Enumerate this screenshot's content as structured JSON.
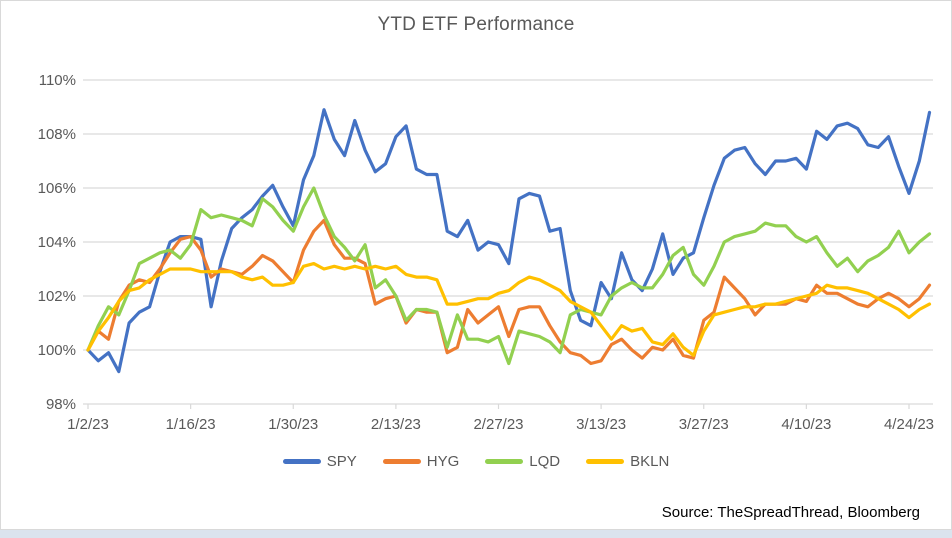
{
  "chart_data": {
    "type": "line",
    "title": "YTD ETF Performance",
    "source": "Source: TheSpreadThread, Bloomberg",
    "legend_position": "bottom-center",
    "grid": "horizontal-only",
    "colors": {
      "text": "#595959",
      "gridline": "#d9d9d9",
      "source_text": "#000000",
      "below_chart_strip": "#dbe3ee"
    },
    "y_axis": {
      "tick_labels": [
        "98%",
        "100%",
        "102%",
        "104%",
        "106%",
        "108%",
        "110%"
      ],
      "min": 98,
      "max": 110,
      "step": 2,
      "unit": "%"
    },
    "x_axis": {
      "tick_labels": [
        "1/2/23",
        "1/16/23",
        "1/30/23",
        "2/13/23",
        "2/27/23",
        "3/13/23",
        "3/27/23",
        "4/10/23",
        "4/24/23"
      ],
      "points_per_tick": 10,
      "granularity": "daily (weekdays)"
    },
    "series": [
      {
        "name": "SPY",
        "color": "#4472C4",
        "values": [
          100.0,
          99.6,
          99.9,
          99.2,
          101.0,
          101.4,
          101.6,
          102.9,
          104.0,
          104.2,
          104.2,
          104.1,
          101.6,
          103.3,
          104.5,
          104.9,
          105.2,
          105.7,
          106.1,
          105.3,
          104.6,
          106.3,
          107.2,
          108.9,
          107.8,
          107.2,
          108.5,
          107.4,
          106.6,
          106.9,
          107.9,
          108.3,
          106.7,
          106.5,
          106.5,
          104.4,
          104.2,
          104.8,
          103.7,
          104.0,
          103.9,
          103.2,
          105.6,
          105.8,
          105.7,
          104.4,
          104.5,
          102.2,
          101.1,
          100.9,
          102.5,
          101.9,
          103.6,
          102.6,
          102.2,
          103.0,
          104.3,
          102.8,
          103.4,
          103.6,
          104.9,
          106.1,
          107.1,
          107.4,
          107.5,
          106.9,
          106.5,
          107.0,
          107.0,
          107.1,
          106.7,
          108.1,
          107.8,
          108.3,
          108.4,
          108.2,
          107.6,
          107.5,
          107.9,
          106.8,
          105.8,
          107.0,
          108.8
        ]
      },
      {
        "name": "HYG",
        "color": "#ED7D31",
        "values": [
          100.0,
          100.7,
          100.4,
          101.8,
          102.4,
          102.6,
          102.5,
          103.0,
          103.6,
          104.1,
          104.2,
          103.7,
          102.7,
          103.0,
          102.9,
          102.8,
          103.1,
          103.5,
          103.3,
          102.9,
          102.5,
          103.7,
          104.4,
          104.8,
          103.9,
          103.4,
          103.4,
          103.2,
          101.7,
          101.9,
          102.0,
          101.0,
          101.5,
          101.4,
          101.4,
          99.9,
          100.1,
          101.5,
          101.0,
          101.3,
          101.6,
          100.5,
          101.5,
          101.6,
          101.6,
          100.9,
          100.3,
          99.9,
          99.8,
          99.5,
          99.6,
          100.2,
          100.4,
          100.0,
          99.7,
          100.1,
          100.0,
          100.4,
          99.8,
          99.7,
          101.1,
          101.4,
          102.7,
          102.3,
          101.9,
          101.3,
          101.7,
          101.7,
          101.7,
          101.9,
          101.8,
          102.4,
          102.1,
          102.1,
          101.9,
          101.7,
          101.6,
          101.9,
          102.1,
          101.9,
          101.6,
          101.9,
          102.4
        ]
      },
      {
        "name": "LQD",
        "color": "#92D050",
        "values": [
          100.0,
          100.9,
          101.6,
          101.3,
          102.2,
          103.2,
          103.4,
          103.6,
          103.7,
          103.4,
          103.9,
          105.2,
          104.9,
          105.0,
          104.9,
          104.8,
          104.6,
          105.6,
          105.3,
          104.8,
          104.4,
          105.3,
          106.0,
          105.0,
          104.2,
          103.8,
          103.3,
          103.9,
          102.3,
          102.6,
          102.0,
          101.1,
          101.5,
          101.5,
          101.4,
          100.1,
          101.3,
          100.4,
          100.4,
          100.3,
          100.5,
          99.5,
          100.7,
          100.6,
          100.5,
          100.3,
          99.9,
          101.3,
          101.5,
          101.4,
          101.3,
          102.0,
          102.3,
          102.5,
          102.3,
          102.3,
          102.8,
          103.5,
          103.8,
          102.8,
          102.4,
          103.1,
          104.0,
          104.2,
          104.3,
          104.4,
          104.7,
          104.6,
          104.6,
          104.2,
          104.0,
          104.2,
          103.6,
          103.1,
          103.4,
          102.9,
          103.3,
          103.5,
          103.8,
          104.4,
          103.6,
          104.0,
          104.3
        ]
      },
      {
        "name": "BKLN",
        "color": "#FFC000",
        "values": [
          100.0,
          100.7,
          101.2,
          101.8,
          102.2,
          102.3,
          102.6,
          102.8,
          103.0,
          103.0,
          103.0,
          102.9,
          102.9,
          102.9,
          102.9,
          102.7,
          102.6,
          102.7,
          102.4,
          102.4,
          102.5,
          103.1,
          103.2,
          103.0,
          103.1,
          103.0,
          103.1,
          103.0,
          103.1,
          103.0,
          103.1,
          102.8,
          102.7,
          102.7,
          102.6,
          101.7,
          101.7,
          101.8,
          101.9,
          101.9,
          102.1,
          102.2,
          102.5,
          102.7,
          102.6,
          102.4,
          102.2,
          101.8,
          101.6,
          101.4,
          100.9,
          100.4,
          100.9,
          100.7,
          100.8,
          100.3,
          100.2,
          100.6,
          100.1,
          99.8,
          100.7,
          101.3,
          101.4,
          101.5,
          101.6,
          101.6,
          101.7,
          101.7,
          101.8,
          101.9,
          102.0,
          102.1,
          102.4,
          102.3,
          102.3,
          102.2,
          102.1,
          101.9,
          101.7,
          101.5,
          101.2,
          101.5,
          101.7
        ]
      }
    ]
  }
}
